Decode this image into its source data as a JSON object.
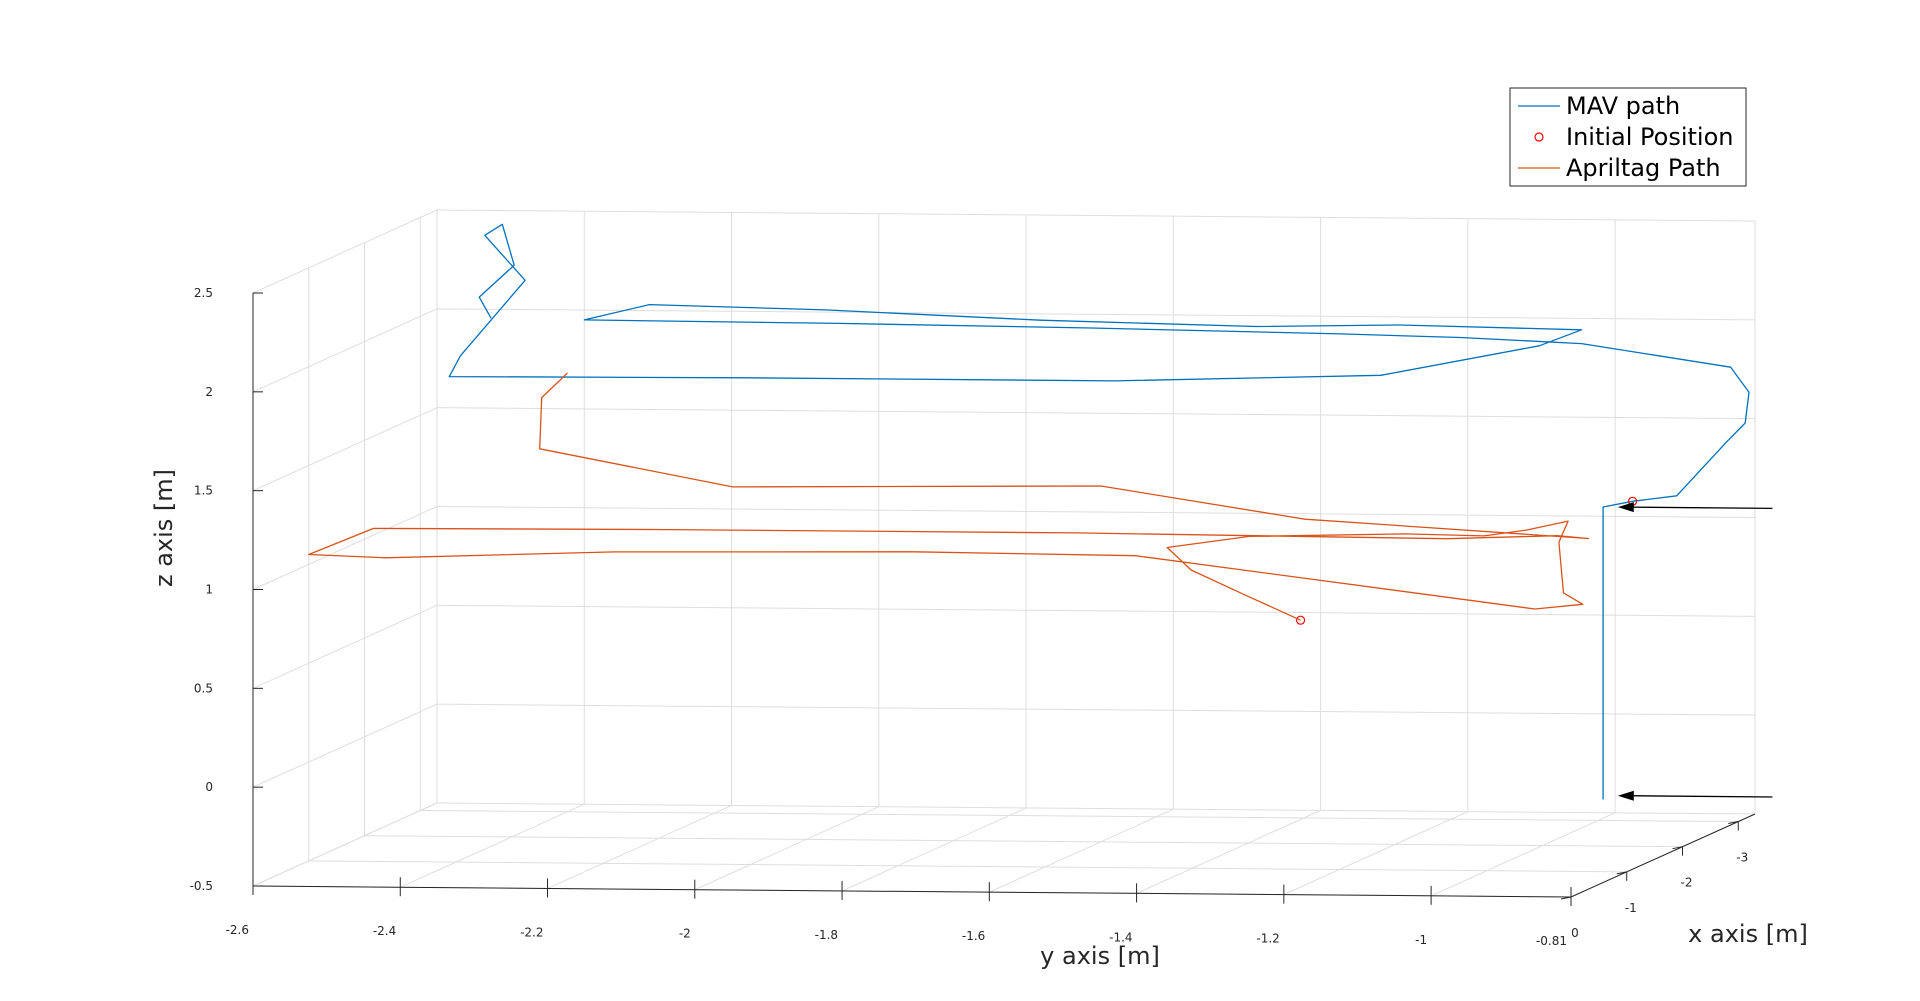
{
  "chart_data": {
    "type": "line3d",
    "xlabel": "x axis [m]",
    "ylabel": "y axis [m]",
    "zlabel": "z axis [m]",
    "x_ticks": [
      "0",
      "-1",
      "-2",
      "-3"
    ],
    "y_ticks": [
      "-2.6",
      "-2.4",
      "-2.2",
      "-2",
      "-1.8",
      "-1.6",
      "-1.4",
      "-1.2",
      "-1",
      "-0.81"
    ],
    "z_ticks": [
      "-0.5",
      "0",
      "0.5",
      "1",
      "1.5",
      "2",
      "2.5"
    ],
    "xlim": [
      0,
      -3.3
    ],
    "ylim": [
      -2.6,
      -0.81
    ],
    "zlim": [
      -0.5,
      2.5
    ],
    "grid": true,
    "legend_position": "top-right",
    "legend": [
      "MAV path",
      "Initial Position",
      "Apriltag Path"
    ],
    "colors": {
      "mav": "#0072BD",
      "initial": "#FF0000",
      "apriltag": "#D95319",
      "arrow": "#000000"
    },
    "series": [
      {
        "name": "MAV path",
        "points": [
          [
            -1.5,
            -0.88,
            -0.2
          ],
          [
            -1.5,
            -0.88,
            1.28
          ],
          [
            -1.5,
            -0.84,
            1.31
          ],
          [
            -1.5,
            -0.78,
            1.34
          ],
          [
            -2.0,
            -0.75,
            1.55
          ],
          [
            -2.2,
            -0.74,
            1.62
          ],
          [
            -2.4,
            -0.75,
            1.75
          ],
          [
            -2.6,
            -0.79,
            1.85
          ],
          [
            -2.7,
            -1.0,
            1.95
          ],
          [
            -2.9,
            -1.18,
            1.95
          ],
          [
            -3.0,
            -1.35,
            1.95
          ],
          [
            -3.15,
            -1.7,
            1.95
          ],
          [
            -3.25,
            -2.05,
            1.95
          ],
          [
            -3.3,
            -2.4,
            1.95
          ],
          [
            -3.15,
            -2.3,
            2.05
          ],
          [
            -3.0,
            -2.05,
            2.05
          ],
          [
            -2.9,
            -1.75,
            2.02
          ],
          [
            -2.8,
            -1.45,
            2.01
          ],
          [
            -2.75,
            -1.25,
            2.03
          ],
          [
            -2.7,
            -1.0,
            2.02
          ],
          [
            -2.6,
            -1.05,
            1.95
          ],
          [
            -2.4,
            -1.25,
            1.82
          ],
          [
            -2.25,
            -1.6,
            1.8
          ],
          [
            -2.25,
            -2.1,
            1.8
          ],
          [
            -2.2,
            -2.5,
            1.8
          ],
          [
            -2.4,
            -2.5,
            1.88
          ],
          [
            -2.9,
            -2.45,
            2.2
          ],
          [
            -3.1,
            -2.52,
            2.4
          ],
          [
            -3.15,
            -2.5,
            2.45
          ],
          [
            -3.1,
            -2.48,
            2.25
          ],
          [
            -3.0,
            -2.52,
            2.1
          ],
          [
            -2.95,
            -2.5,
            2.0
          ]
        ]
      },
      {
        "name": "Initial Position",
        "points": [
          [
            -1.5,
            -0.84,
            1.31
          ],
          [
            -0.3,
            -1.2,
            0.85
          ]
        ]
      },
      {
        "name": "Apriltag Path",
        "points": [
          [
            -0.3,
            -1.2,
            0.85
          ],
          [
            -0.35,
            -1.28,
            0.97
          ],
          [
            -0.45,
            -1.36,
            1.08
          ],
          [
            -0.55,
            -1.4,
            1.18
          ],
          [
            -0.7,
            -1.3,
            1.22
          ],
          [
            -0.85,
            -1.1,
            1.22
          ],
          [
            -0.95,
            -1.0,
            1.2
          ],
          [
            -1.2,
            -0.96,
            1.2
          ],
          [
            -1.4,
            -0.92,
            1.22
          ],
          [
            -1.5,
            -0.94,
            1.1
          ],
          [
            -1.45,
            -0.93,
            0.85
          ],
          [
            -1.4,
            -0.9,
            0.8
          ],
          [
            -1.2,
            -0.95,
            0.8
          ],
          [
            -1.1,
            -1.0,
            0.84
          ],
          [
            -1.3,
            -1.5,
            1.04
          ],
          [
            -1.3,
            -1.8,
            1.05
          ],
          [
            -1.2,
            -2.2,
            1.05
          ],
          [
            -1.05,
            -2.5,
            1.03
          ],
          [
            -1.0,
            -2.6,
            1.05
          ],
          [
            -1.5,
            -2.55,
            1.12
          ],
          [
            -1.55,
            -2.15,
            1.12
          ],
          [
            -1.55,
            -1.6,
            1.12
          ],
          [
            -1.6,
            -1.1,
            1.1
          ],
          [
            -1.6,
            -0.95,
            1.12
          ],
          [
            -1.5,
            -0.9,
            1.12
          ],
          [
            -1.7,
            -1.3,
            1.18
          ],
          [
            -2.0,
            -1.6,
            1.3
          ],
          [
            -2.0,
            -2.1,
            1.28
          ],
          [
            -2.5,
            -2.4,
            1.4
          ],
          [
            -2.8,
            -2.42,
            1.62
          ],
          [
            -3.0,
            -2.4,
            1.72
          ]
        ]
      }
    ],
    "annotations": [
      {
        "type": "arrow",
        "x": -1.5,
        "y": -0.65,
        "z": 1.28,
        "to_x": -1.5,
        "to_y": -0.86,
        "to_z": 1.28
      },
      {
        "type": "arrow",
        "x": -1.5,
        "y": -0.65,
        "z": -0.18,
        "to_x": -1.5,
        "to_y": -0.86,
        "to_z": -0.18
      }
    ]
  }
}
